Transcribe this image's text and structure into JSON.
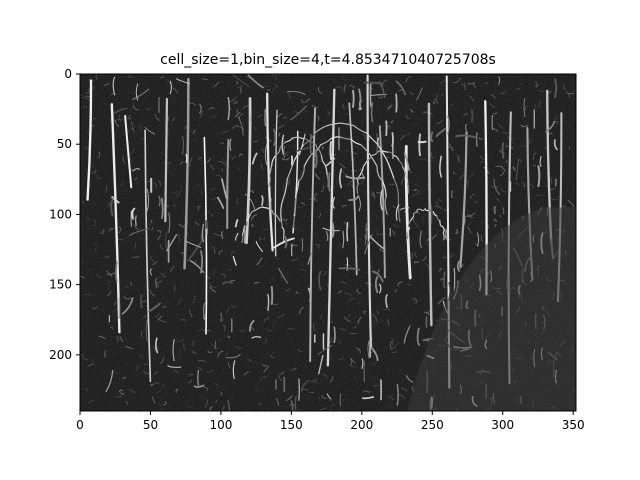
{
  "chart_data": {
    "type": "heatmap",
    "title": "cell_size=1,bin_size=4,t=4.853471040725708s",
    "xlabel": "",
    "ylabel": "",
    "xlim": [
      0,
      352
    ],
    "ylim": [
      240,
      0
    ],
    "xticks": [
      0,
      50,
      100,
      150,
      200,
      250,
      300,
      350
    ],
    "yticks": [
      0,
      50,
      100,
      150,
      200
    ],
    "image_width": 352,
    "image_height": 240,
    "colormap": "gray",
    "background_color": "#0d0d0d",
    "edge_color": "#e6e6e6",
    "description_free_note": ""
  }
}
